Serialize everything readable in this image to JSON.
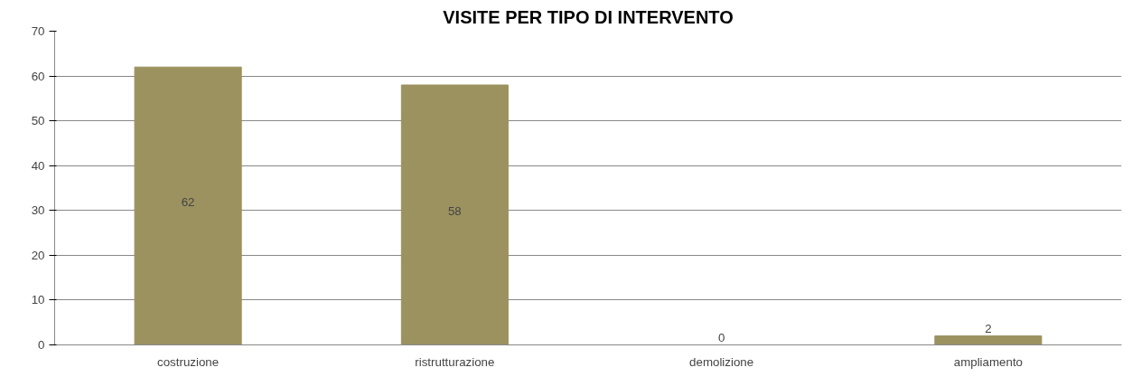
{
  "chart_data": {
    "type": "bar",
    "title": "VISITE PER TIPO DI INTERVENTO",
    "categories": [
      "costruzione",
      "ristrutturazione",
      "demolizione",
      "ampliamento"
    ],
    "values": [
      62,
      58,
      0,
      2
    ],
    "color": "#9c9260",
    "ylim": [
      0,
      70
    ],
    "yticks": [
      0,
      10,
      20,
      30,
      40,
      50,
      60,
      70
    ],
    "grid": "y",
    "data_labels": true
  }
}
